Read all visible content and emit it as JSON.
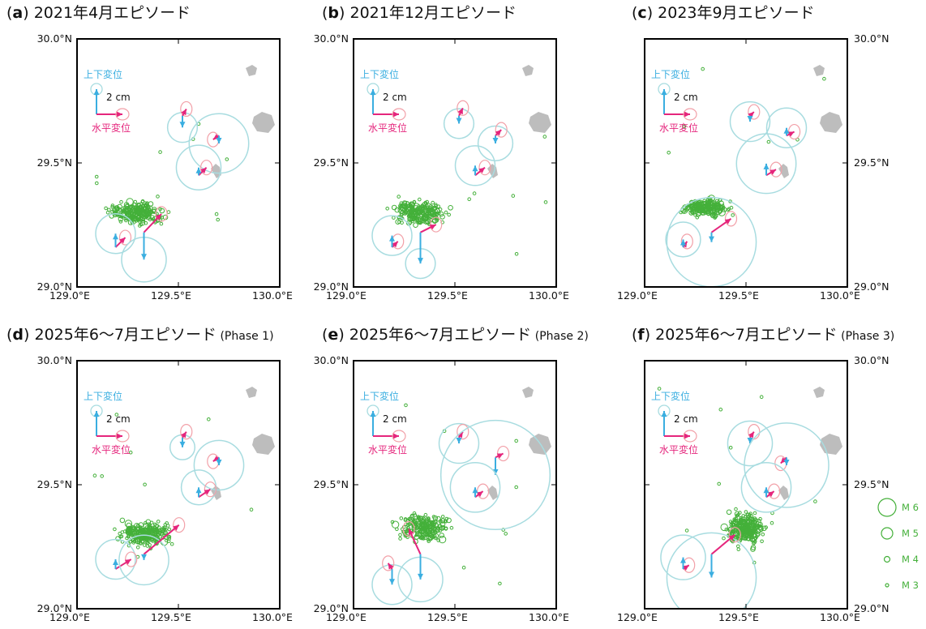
{
  "panels": [
    {
      "letter": "a",
      "title": "2021年4月エピソード",
      "phase": ""
    },
    {
      "letter": "b",
      "title": "2021年12月エピソード",
      "phase": ""
    },
    {
      "letter": "c",
      "title": "2023年9月エピソード",
      "phase": ""
    },
    {
      "letter": "d",
      "title": "2025年6〜7月エピソード",
      "phase": "(Phase 1)"
    },
    {
      "letter": "e",
      "title": "2025年6〜7月エピソード",
      "phase": "(Phase 2)"
    },
    {
      "letter": "f",
      "title": "2025年6〜7月エピソード",
      "phase": "(Phase 3)"
    }
  ],
  "axes": {
    "lon_ticks": [
      "129.0°E",
      "129.5°E",
      "130.0°E"
    ],
    "lat_ticks": [
      "30.0°N",
      "29.5°N",
      "29.0°N"
    ],
    "lon_range": [
      129.0,
      130.0
    ],
    "lat_range": [
      29.0,
      30.0
    ]
  },
  "legend_box": {
    "vertical_label": "上下変位",
    "scale_label": "2 cm",
    "horizontal_label": "水平変位"
  },
  "magnitude_legend": [
    "M 6",
    "M 5",
    "M 4",
    "M 3"
  ],
  "colors": {
    "vertical": "#3aaee0",
    "horizontal": "#e5257c",
    "error_circle": "#a8dce0",
    "error_ellipse": "#f2a0a8",
    "quake": "#44b03a",
    "island": "#bdbdbd"
  },
  "stations": [
    {
      "lon": 129.19,
      "lat": 29.16
    },
    {
      "lon": 129.33,
      "lat": 29.22
    },
    {
      "lon": 129.52,
      "lat": 29.69
    },
    {
      "lon": 129.7,
      "lat": 29.61
    },
    {
      "lon": 129.6,
      "lat": 29.45
    }
  ],
  "episodes": [
    {
      "quake_center": [
        129.3,
        29.3
      ],
      "quake_spread": [
        0.12,
        0.045
      ],
      "quake_count": 230,
      "h": [
        [
          0.5,
          0.5
        ],
        [
          0.9,
          0.95
        ],
        [
          0.2,
          0.35
        ],
        [
          -0.3,
          -0.2
        ],
        [
          0.4,
          0.4
        ]
      ],
      "v": [
        [
          0,
          0.7
        ],
        [
          0,
          -1.4
        ],
        [
          0,
          -0.6
        ],
        [
          0,
          -0.4
        ],
        [
          0,
          0.4
        ]
      ],
      "circles": [
        0.08,
        0.09,
        0.06,
        0.12,
        0.09
      ]
    },
    {
      "quake_center": [
        129.32,
        29.3
      ],
      "quake_spread": [
        0.12,
        0.045
      ],
      "quake_count": 220,
      "h": [
        [
          0.3,
          0.3
        ],
        [
          0.8,
          0.4
        ],
        [
          0.2,
          0.4
        ],
        [
          0.3,
          0.3
        ],
        [
          0.5,
          0.4
        ]
      ],
      "v": [
        [
          0,
          0.6
        ],
        [
          0,
          -1.6
        ],
        [
          0,
          -0.4
        ],
        [
          0,
          -0.4
        ],
        [
          0,
          0.5
        ]
      ],
      "circles": [
        0.08,
        0.06,
        0.06,
        0.07,
        0.08
      ]
    },
    {
      "quake_center": [
        129.3,
        29.32
      ],
      "quake_spread": [
        0.1,
        0.035
      ],
      "quake_count": 200,
      "h": [
        [
          0.2,
          0.3
        ],
        [
          1.0,
          0.7
        ],
        [
          0.2,
          0.2
        ],
        [
          0.4,
          0.2
        ],
        [
          0.5,
          0.3
        ]
      ],
      "v": [
        [
          0,
          0.4
        ],
        [
          0,
          -0.5
        ],
        [
          0,
          -0.3
        ],
        [
          0,
          0.4
        ],
        [
          0,
          0.6
        ]
      ],
      "circles": [
        0.07,
        0.18,
        0.08,
        0.08,
        0.12
      ]
    },
    {
      "quake_center": [
        129.33,
        29.3
      ],
      "quake_spread": [
        0.12,
        0.045
      ],
      "quake_count": 250,
      "h": [
        [
          0.8,
          0.5
        ],
        [
          1.8,
          1.5
        ],
        [
          0.2,
          0.3
        ],
        [
          -0.3,
          -0.2
        ],
        [
          0.6,
          0.4
        ]
      ],
      "v": [
        [
          0,
          0.5
        ],
        [
          0,
          -0.3
        ],
        [
          0,
          -0.5
        ],
        [
          0,
          -0.4
        ],
        [
          0,
          0.5
        ]
      ],
      "circles": [
        0.08,
        0.1,
        0.05,
        0.1,
        0.07
      ]
    },
    {
      "quake_center": [
        129.35,
        29.33
      ],
      "quake_spread": [
        0.12,
        0.05
      ],
      "quake_count": 200,
      "h": [
        [
          -0.2,
          0.3
        ],
        [
          -0.6,
          1.3
        ],
        [
          0.2,
          0.3
        ],
        [
          0.4,
          0.2
        ],
        [
          0.4,
          0.3
        ]
      ],
      "v": [
        [
          0,
          -0.8
        ],
        [
          0,
          -1.3
        ],
        [
          0,
          -0.3
        ],
        [
          0,
          -0.9
        ],
        [
          0,
          0.5
        ]
      ],
      "circles": [
        0.08,
        0.09,
        0.08,
        0.22,
        0.1
      ]
    },
    {
      "quake_center": [
        129.5,
        29.32
      ],
      "quake_spread": [
        0.09,
        0.06
      ],
      "quake_count": 300,
      "h": [
        [
          0.3,
          0.2
        ],
        [
          1.2,
          1.0
        ],
        [
          0.2,
          0.3
        ],
        [
          -0.3,
          -0.3
        ],
        [
          0.4,
          0.3
        ]
      ],
      "v": [
        [
          0,
          0.6
        ],
        [
          0,
          -1.2
        ],
        [
          0,
          -0.3
        ],
        [
          0,
          -0.4
        ],
        [
          0,
          0.5
        ]
      ],
      "circles": [
        0.09,
        0.18,
        0.09,
        0.17,
        0.1
      ]
    }
  ]
}
